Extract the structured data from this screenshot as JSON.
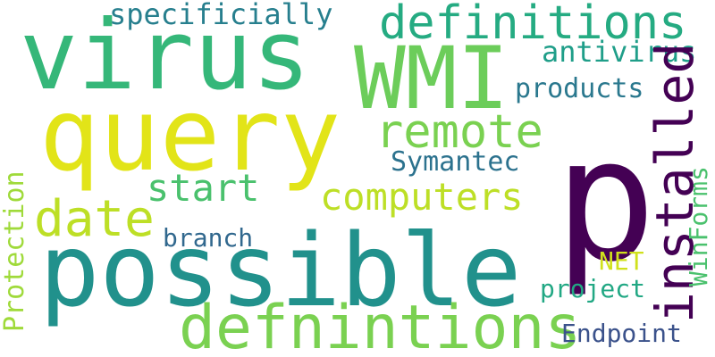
{
  "words": {
    "virus": {
      "text": "virus",
      "color": "#35b779"
    },
    "query": {
      "text": "query",
      "color": "#e2e418"
    },
    "WMI": {
      "text": "WMI",
      "color": "#6ccd5a"
    },
    "p": {
      "text": "p",
      "color": "#440154"
    },
    "possible": {
      "text": "possible",
      "color": "#21918c"
    },
    "defnintions": {
      "text": "defnintions",
      "color": "#7ad151"
    },
    "definitions": {
      "text": "definitions",
      "color": "#25ab82"
    },
    "installed": {
      "text": "installed",
      "color": "#440154"
    },
    "remote": {
      "text": "remote",
      "color": "#7ad151"
    },
    "computers": {
      "text": "computers",
      "color": "#bddf26"
    },
    "date": {
      "text": "date",
      "color": "#bddf26"
    },
    "start": {
      "text": "start",
      "color": "#4ac16d"
    },
    "specificially": {
      "text": "specificially",
      "color": "#277f8e"
    },
    "antivirus": {
      "text": "antivirus",
      "color": "#1f9e89"
    },
    "products": {
      "text": "products",
      "color": "#2a788e"
    },
    "Symantec": {
      "text": "Symantec",
      "color": "#2c728e"
    },
    "Protection": {
      "text": "Protection",
      "color": "#9fda3a"
    },
    "branch": {
      "text": "branch",
      "color": "#31688e"
    },
    "WinForms": {
      "text": "WinForms",
      "color": "#4ac16d"
    },
    "NET": {
      "text": "NET",
      "color": "#d0e11c"
    },
    "project": {
      "text": "project",
      "color": "#22a884"
    },
    "Endpoint": {
      "text": "Endpoint",
      "color": "#3b528b"
    }
  }
}
